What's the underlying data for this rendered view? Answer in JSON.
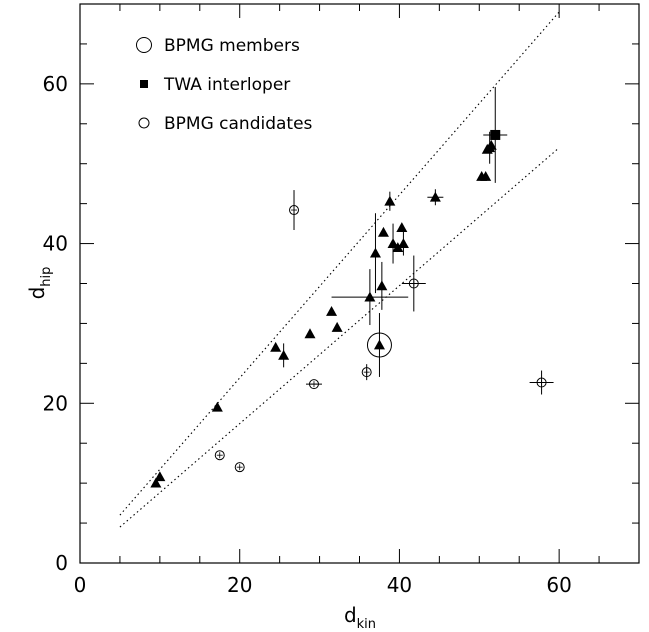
{
  "chart_data": {
    "type": "scatter",
    "xlabel": {
      "main": "d",
      "sub": "kin"
    },
    "ylabel": {
      "main": "d",
      "sub": "hip"
    },
    "xlim": [
      0,
      70
    ],
    "ylim": [
      0,
      70
    ],
    "x_ticks": [
      0,
      20,
      40,
      60
    ],
    "y_ticks": [
      0,
      20,
      40,
      60
    ],
    "x_tick_labels": [
      "0",
      "20",
      "40",
      "60"
    ],
    "y_tick_labels": [
      "0",
      "20",
      "40",
      "60"
    ],
    "grid": false,
    "legend_position": "top-left",
    "legend": [
      {
        "label": "BPMG members",
        "marker": "open-circle-large"
      },
      {
        "label": "TWA interloper",
        "marker": "filled-square"
      },
      {
        "label": "BPMG candidates",
        "marker": "open-circle-small"
      }
    ],
    "reference_lines": [
      {
        "style": "dotted",
        "points": [
          [
            5,
            6
          ],
          [
            60,
            69
          ]
        ]
      },
      {
        "style": "dotted",
        "points": [
          [
            5,
            4.5
          ],
          [
            60,
            52
          ]
        ]
      }
    ],
    "series": [
      {
        "marker": "filled-triangle",
        "points": [
          {
            "x": 9.5,
            "y": 10.0
          },
          {
            "x": 10.0,
            "y": 10.8
          },
          {
            "x": 17.2,
            "y": 19.5
          },
          {
            "x": 24.5,
            "y": 27.0
          },
          {
            "x": 25.5,
            "y": 26.0,
            "yerr": 1.5
          },
          {
            "x": 28.8,
            "y": 28.7
          },
          {
            "x": 31.5,
            "y": 31.5
          },
          {
            "x": 32.2,
            "y": 29.5
          },
          {
            "x": 36.3,
            "y": 33.3,
            "xerr": 4.8,
            "yerr": 3.5
          },
          {
            "x": 37.0,
            "y": 38.8,
            "yerr": 5.0
          },
          {
            "x": 37.5,
            "y": 27.3,
            "yerr": 4.0
          },
          {
            "x": 37.8,
            "y": 34.7,
            "yerr": 3.0
          },
          {
            "x": 38.0,
            "y": 41.4
          },
          {
            "x": 38.8,
            "y": 45.3,
            "yerr": 1.2
          },
          {
            "x": 39.2,
            "y": 40.0,
            "yerr": 2.5
          },
          {
            "x": 39.8,
            "y": 39.5
          },
          {
            "x": 40.3,
            "y": 42.0
          },
          {
            "x": 40.5,
            "y": 40.0,
            "yerr": 1.5
          },
          {
            "x": 44.5,
            "y": 45.8,
            "xerr": 1.0,
            "yerr": 1.0
          },
          {
            "x": 50.3,
            "y": 48.4
          },
          {
            "x": 50.8,
            "y": 48.4
          },
          {
            "x": 51.0,
            "y": 51.8
          },
          {
            "x": 51.3,
            "y": 52.0,
            "yerr": 2.0
          },
          {
            "x": 51.5,
            "y": 52.3
          }
        ]
      },
      {
        "name": "TWA interloper",
        "marker": "filled-square",
        "points": [
          {
            "x": 52.0,
            "y": 53.6,
            "xerr": 1.5,
            "yerr": 6.0
          }
        ]
      },
      {
        "name": "BPMG members",
        "marker": "open-circle-large",
        "points": [
          {
            "x": 37.5,
            "y": 27.3
          }
        ]
      },
      {
        "name": "BPMG candidates",
        "marker": "open-circle-small",
        "points": [
          {
            "x": 17.5,
            "y": 13.5
          },
          {
            "x": 20.0,
            "y": 12.0
          },
          {
            "x": 26.8,
            "y": 44.2,
            "yerr": 2.5
          },
          {
            "x": 29.3,
            "y": 22.4,
            "xerr": 1.0
          },
          {
            "x": 35.9,
            "y": 23.9,
            "yerr": 1.0
          },
          {
            "x": 41.8,
            "y": 35.0,
            "xerr": 1.5,
            "yerr": 3.5
          },
          {
            "x": 57.8,
            "y": 22.6,
            "xerr": 1.5,
            "yerr": 1.5
          }
        ]
      }
    ]
  }
}
